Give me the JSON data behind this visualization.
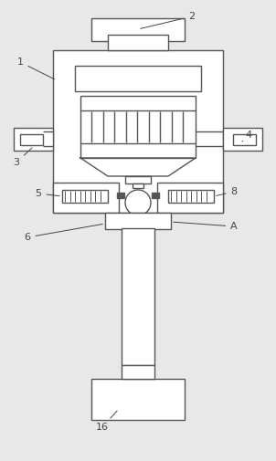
{
  "bg_color": "#e8e8e8",
  "line_color": "#555555",
  "line_width": 1.0,
  "font_size": 8,
  "annotation_color": "#444444"
}
